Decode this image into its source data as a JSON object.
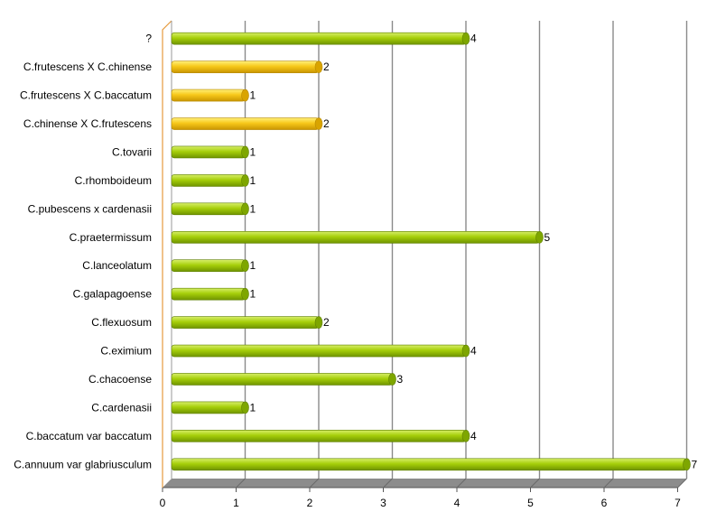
{
  "chart_data": {
    "type": "bar",
    "orientation": "horizontal",
    "categories": [
      "?",
      "C.frutescens X C.chinense",
      "C.frutescens X C.baccatum",
      "C.chinense X C.frutescens",
      "C.tovarii",
      "C.rhomboideum",
      "C.pubescens x cardenasii",
      "C.praetermissum",
      "C.lanceolatum",
      "C.galapagoense",
      "C.flexuosum",
      "C.eximium",
      "C.chacoense",
      "C.cardenasii",
      "C.baccatum var baccatum",
      "C.annuum var glabriusculum"
    ],
    "values": [
      4,
      2,
      1,
      2,
      1,
      1,
      1,
      5,
      1,
      1,
      2,
      4,
      3,
      1,
      4,
      7
    ],
    "bar_colors": [
      "#9bc400",
      "#f5c400",
      "#f5c400",
      "#f5c400",
      "#9bc400",
      "#9bc400",
      "#9bc400",
      "#9bc400",
      "#9bc400",
      "#9bc400",
      "#9bc400",
      "#9bc400",
      "#9bc400",
      "#9bc400",
      "#9bc400",
      "#9bc400"
    ],
    "xlim": [
      0,
      7
    ],
    "xticks": [
      0,
      1,
      2,
      3,
      4,
      5,
      6,
      7
    ],
    "grid": true,
    "legend": false,
    "title": "",
    "xlabel": "",
    "ylabel": ""
  }
}
